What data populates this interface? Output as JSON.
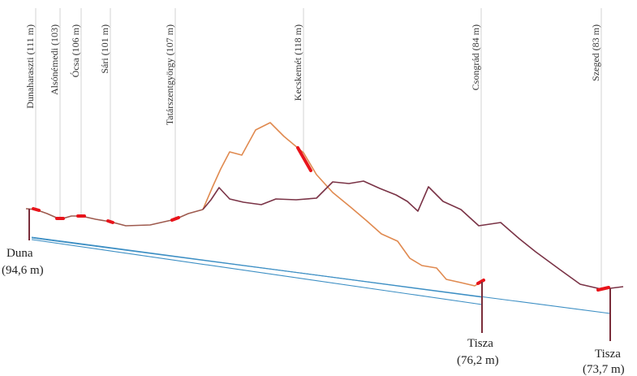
{
  "diagram": {
    "towns": [
      {
        "key": "dunaharaszti",
        "label": "Dunaharaszti (111 m)"
      },
      {
        "key": "alsonemedi",
        "label": "Alsónémedi (103)"
      },
      {
        "key": "ocsa",
        "label": "Ócsa (106 m)"
      },
      {
        "key": "sari",
        "label": "Sári (101 m)"
      },
      {
        "key": "tatarszentgyorgy",
        "label": "Tatárszentgyörgy (107 m)"
      },
      {
        "key": "kecskemet",
        "label": "Kecskemét (118 m)"
      },
      {
        "key": "csongrad",
        "label": "Csongrád (84 m)"
      },
      {
        "key": "szeged",
        "label": "Szeged (83 m)"
      }
    ],
    "rivers": {
      "duna": {
        "name": "Duna",
        "elevation": "(94,6 m)"
      },
      "tisza_csongrad": {
        "name": "Tisza",
        "elevation": "(76,2 m)"
      },
      "tisza_szeged": {
        "name": "Tisza",
        "elevation": "(73,7 m)"
      }
    },
    "colors": {
      "profile_to_csongrad": "#e08a50",
      "profile_to_szeged": "#7a3346",
      "town_marker": "#e8141b",
      "water_level_line": "#3d8fc4",
      "guide_line": "#c8c8c8"
    }
  }
}
